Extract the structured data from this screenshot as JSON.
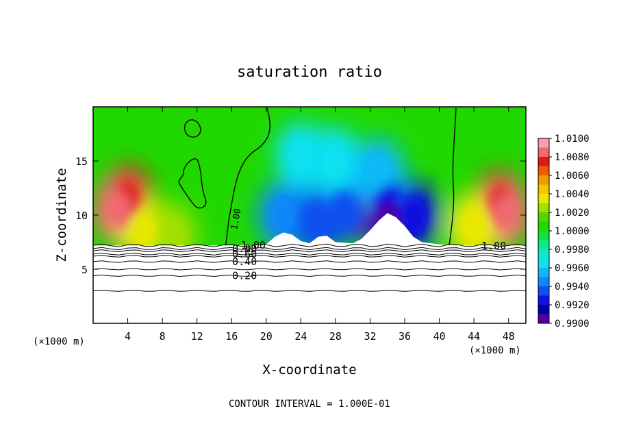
{
  "chart_data": {
    "type": "heatmap",
    "title": "saturation ratio",
    "xlabel": "X-coordinate",
    "ylabel": "Z-coordinate",
    "x_unit_left": "(×1000 m)",
    "x_unit_right": "(×1000 m)",
    "xlim": [
      0,
      50
    ],
    "ylim": [
      0,
      20
    ],
    "x_ticks": [
      4,
      8,
      12,
      16,
      20,
      24,
      28,
      32,
      36,
      40,
      44,
      48
    ],
    "y_ticks": [
      5,
      10,
      15
    ],
    "footer": "CONTOUR INTERVAL = 1.000E-01",
    "colorbar": {
      "min": 0.99,
      "max": 1.01,
      "labels": [
        "1.0100",
        "1.0080",
        "1.0060",
        "1.0040",
        "1.0020",
        "1.0000",
        "0.9980",
        "0.9960",
        "0.9940",
        "0.9920",
        "0.9900"
      ],
      "colors": [
        "#f7a0a8",
        "#f06870",
        "#e01818",
        "#f05a00",
        "#f09a00",
        "#f0c800",
        "#e8e800",
        "#a0e000",
        "#50d800",
        "#20d800",
        "#10e040",
        "#10e890",
        "#10e8c8",
        "#10e0f0",
        "#10b8f8",
        "#1088f8",
        "#1050f0",
        "#1010e0",
        "#0000a8",
        "#5000a0"
      ]
    },
    "contour_levels": [
      {
        "level": 0.2,
        "label": "0.20",
        "z": 4.4
      },
      {
        "level": 0.4,
        "label": "0.40",
        "z": 5.7
      },
      {
        "level": 0.6,
        "label": "0.60",
        "z": 6.4
      },
      {
        "level": 0.8,
        "label": "0.80",
        "z": 6.9
      },
      {
        "level": 1.0,
        "label": "1.00",
        "z": 7.2
      }
    ],
    "contour_unlabeled_z": [
      3.0,
      5.0,
      6.2,
      6.7
    ],
    "label_1_00_vertical": "1.00",
    "label_1_00_right": "1.00",
    "cloud_top_profile": [
      [
        0,
        7.2
      ],
      [
        2,
        7.2
      ],
      [
        4,
        7.2
      ],
      [
        6,
        7.2
      ],
      [
        8,
        7.2
      ],
      [
        10,
        7.2
      ],
      [
        12,
        7.2
      ],
      [
        14,
        7.2
      ],
      [
        16,
        7.2
      ],
      [
        18,
        7.2
      ],
      [
        20,
        7.3
      ],
      [
        21,
        8.0
      ],
      [
        22,
        8.4
      ],
      [
        23,
        8.2
      ],
      [
        24,
        7.6
      ],
      [
        25,
        7.4
      ],
      [
        26,
        8.0
      ],
      [
        27,
        8.1
      ],
      [
        28,
        7.5
      ],
      [
        30,
        7.4
      ],
      [
        31,
        7.8
      ],
      [
        32,
        8.6
      ],
      [
        33,
        9.5
      ],
      [
        34,
        10.2
      ],
      [
        35,
        9.8
      ],
      [
        36,
        9.0
      ],
      [
        37,
        8.0
      ],
      [
        38,
        7.5
      ],
      [
        40,
        7.3
      ],
      [
        42,
        7.2
      ],
      [
        44,
        7.2
      ],
      [
        46,
        7.2
      ],
      [
        48,
        7.2
      ],
      [
        50,
        7.2
      ]
    ],
    "field_blobs": [
      {
        "x": 4,
        "z": 11.5,
        "value": 1.008
      },
      {
        "x": 3,
        "z": 10.5,
        "value": 1.009
      },
      {
        "x": 6,
        "z": 8.5,
        "value": 1.004
      },
      {
        "x": 9,
        "z": 8.0,
        "value": 1.003
      },
      {
        "x": 47,
        "z": 11.0,
        "value": 1.008
      },
      {
        "x": 47.5,
        "z": 10.2,
        "value": 1.009
      },
      {
        "x": 44,
        "z": 9.0,
        "value": 1.004
      },
      {
        "x": 22,
        "z": 10.0,
        "value": 0.9945
      },
      {
        "x": 26,
        "z": 9.5,
        "value": 0.9935
      },
      {
        "x": 29,
        "z": 10.5,
        "value": 0.994
      },
      {
        "x": 34,
        "z": 11.5,
        "value": 0.9925
      },
      {
        "x": 34,
        "z": 9.5,
        "value": 0.9905
      },
      {
        "x": 37,
        "z": 10.0,
        "value": 0.993
      },
      {
        "x": 28,
        "z": 15.0,
        "value": 0.9965
      },
      {
        "x": 33,
        "z": 14.0,
        "value": 0.9955
      },
      {
        "x": 24,
        "z": 15.5,
        "value": 0.997
      }
    ]
  }
}
